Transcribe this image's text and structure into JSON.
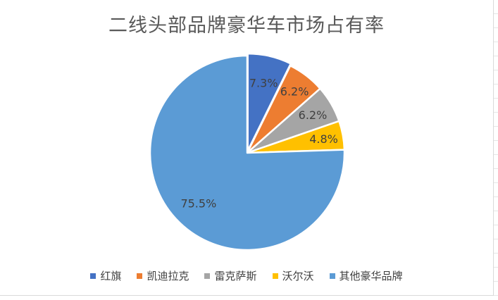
{
  "chart_data": {
    "type": "pie",
    "title": "二线头部品牌豪华车市场占有率",
    "categories": [
      "红旗",
      "凯迪拉克",
      "雷克萨斯",
      "沃尔沃",
      "其他豪华品牌"
    ],
    "values": [
      7.3,
      6.2,
      6.2,
      4.8,
      75.5
    ],
    "data_labels": [
      "7.3%",
      "6.2%",
      "6.2%",
      "4.8%",
      "75.5%"
    ],
    "colors": [
      "#4472c4",
      "#ed7d31",
      "#a5a5a5",
      "#ffc000",
      "#5b9bd5"
    ],
    "legend_position": "bottom",
    "first_slice_offset": "exploded"
  }
}
